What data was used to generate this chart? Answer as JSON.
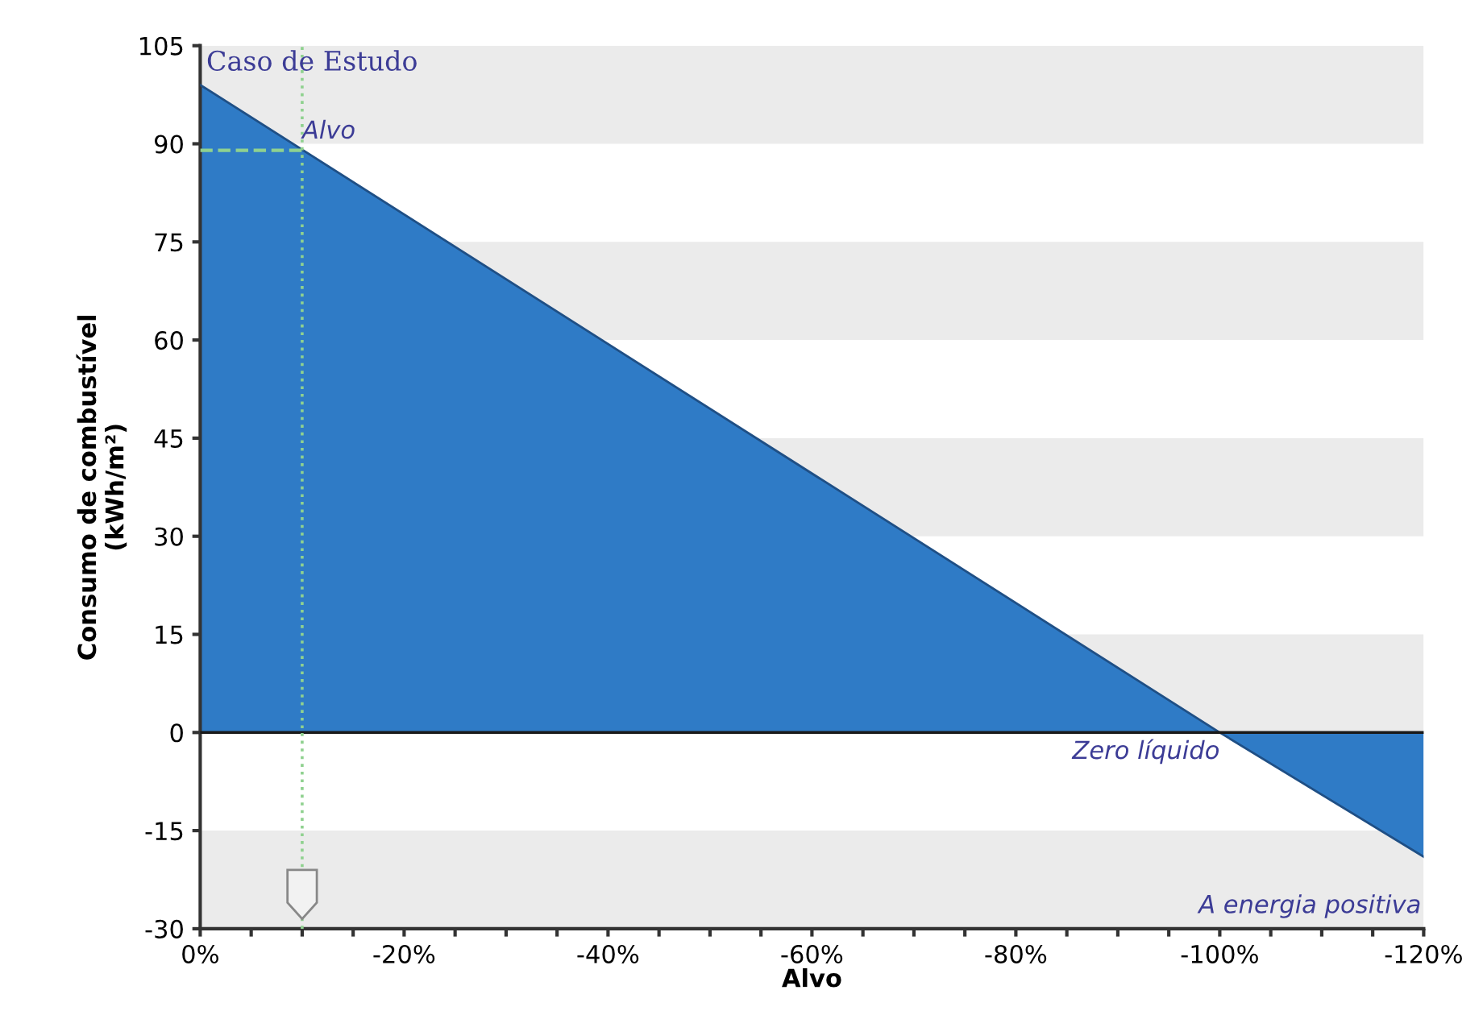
{
  "chart_data": {
    "type": "area",
    "title": "Caso de Estudo",
    "xlabel": "Alvo",
    "ylabel": "Consumo de combustível\n(kWh/m²)",
    "x": [
      0,
      -100,
      -120
    ],
    "values": [
      99,
      0,
      -19
    ],
    "color": "#2f7bc6",
    "xlim": [
      0,
      -120
    ],
    "ylim": [
      -30,
      105
    ],
    "xticks": [
      {
        "value": 0,
        "label": "0%"
      },
      {
        "value": -5,
        "label": null
      },
      {
        "value": -10,
        "label": null
      },
      {
        "value": -15,
        "label": null
      },
      {
        "value": -20,
        "label": "-20%"
      },
      {
        "value": -25,
        "label": null
      },
      {
        "value": -30,
        "label": null
      },
      {
        "value": -35,
        "label": null
      },
      {
        "value": -40,
        "label": "-40%"
      },
      {
        "value": -45,
        "label": null
      },
      {
        "value": -50,
        "label": null
      },
      {
        "value": -55,
        "label": null
      },
      {
        "value": -60,
        "label": "-60%"
      },
      {
        "value": -65,
        "label": null
      },
      {
        "value": -70,
        "label": null
      },
      {
        "value": -75,
        "label": null
      },
      {
        "value": -80,
        "label": "-80%"
      },
      {
        "value": -85,
        "label": null
      },
      {
        "value": -90,
        "label": null
      },
      {
        "value": -95,
        "label": null
      },
      {
        "value": -100,
        "label": "-100%"
      },
      {
        "value": -105,
        "label": null
      },
      {
        "value": -110,
        "label": null
      },
      {
        "value": -115,
        "label": null
      },
      {
        "value": -120,
        "label": "-120%"
      }
    ],
    "yticks": [
      -30,
      -15,
      0,
      15,
      30,
      45,
      60,
      75,
      90,
      105
    ],
    "bands": [
      {
        "axis": "y",
        "from": 90,
        "to": 105,
        "color": "#ebebeb"
      },
      {
        "axis": "y",
        "from": 60,
        "to": 75,
        "color": "#ebebeb"
      },
      {
        "axis": "y",
        "from": 30,
        "to": 45,
        "color": "#ebebeb"
      },
      {
        "axis": "y",
        "from": 0,
        "to": 15,
        "color": "#ebebeb"
      },
      {
        "axis": "y",
        "from": -30,
        "to": -15,
        "color": "#ebebeb"
      }
    ],
    "ref_lines": [
      {
        "axis": "y",
        "value": 0,
        "color": "#1a1a1a",
        "line_style": "solid"
      },
      {
        "axis": "x",
        "value": -10,
        "color": "#8fd18f",
        "line_style": "dotted"
      }
    ],
    "annotations": [
      {
        "text": "Alvo",
        "x": -10,
        "y": 89
      },
      {
        "text": "Zero líquido",
        "x": -100,
        "y": 0
      },
      "A energia positiva"
    ],
    "grid": false
  }
}
